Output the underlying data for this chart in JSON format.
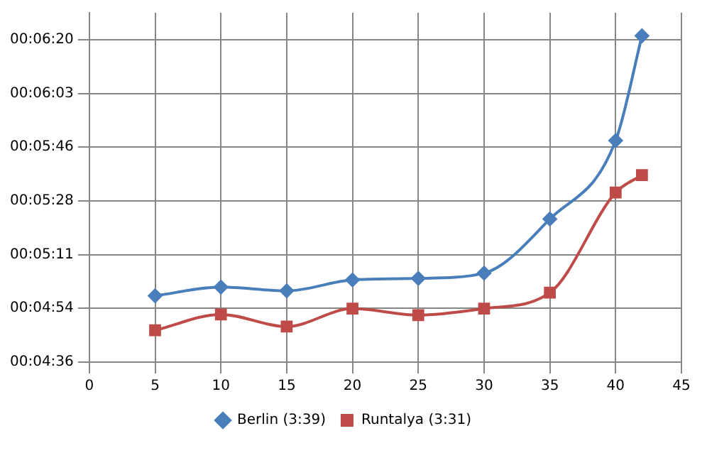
{
  "chart_data": {
    "type": "line",
    "x": [
      5,
      10,
      15,
      20,
      25,
      30,
      35,
      40,
      42
    ],
    "series": [
      {
        "name": "Berlin (3:39)",
        "color": "#4a7ebb",
        "marker": "diamond",
        "values": [
          297.8,
          300.6,
          299.4,
          302.9,
          303.4,
          305.1,
          322.5,
          347.7,
          381.4
        ]
      },
      {
        "name": "Runtalya (3:31)",
        "color": "#be4b48",
        "marker": "square",
        "values": [
          286.7,
          291.8,
          287.9,
          293.7,
          291.6,
          293.7,
          298.8,
          331.0,
          336.6
        ]
      }
    ],
    "xlim": [
      0,
      45
    ],
    "xticks": [
      0,
      5,
      10,
      15,
      20,
      25,
      30,
      35,
      40,
      45
    ],
    "ylim": [
      276.48,
      388.8
    ],
    "yticks": [
      {
        "value": 276.48,
        "label": "00:04:36"
      },
      {
        "value": 293.76,
        "label": "00:04:54"
      },
      {
        "value": 311.04,
        "label": "00:05:11"
      },
      {
        "value": 328.32,
        "label": "00:05:28"
      },
      {
        "value": 345.6,
        "label": "00:05:46"
      },
      {
        "value": 362.88,
        "label": "00:06:03"
      },
      {
        "value": 380.16,
        "label": "00:06:20"
      }
    ],
    "grid": true,
    "legend": "bottom"
  }
}
